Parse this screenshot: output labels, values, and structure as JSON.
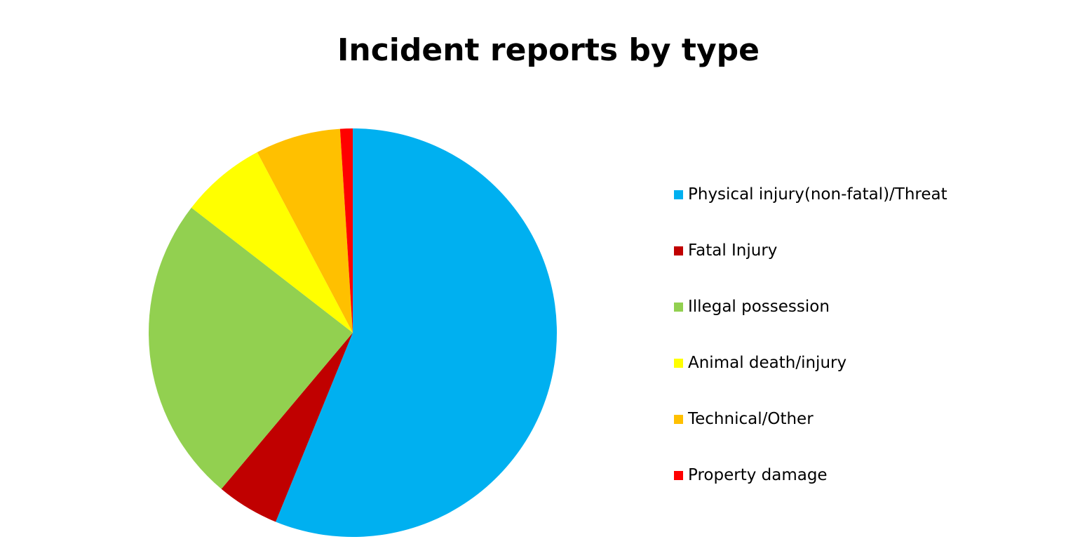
{
  "chart_data": {
    "type": "pie",
    "title": "Incident reports by type",
    "categories": [
      "Physical injury(non-fatal)/Threat",
      "Fatal Injury",
      "Illegal possession",
      "Animal death/injury",
      "Technical/Other",
      "Property damage"
    ],
    "values": [
      56.5,
      5,
      24.5,
      6.8,
      6.8,
      1
    ],
    "colors": [
      "#00B0F0",
      "#C00000",
      "#92D050",
      "#FFFF00",
      "#FFC000",
      "#FF0000"
    ],
    "legend_position": "right",
    "start_angle": "12 o'clock",
    "direction": "clockwise"
  }
}
